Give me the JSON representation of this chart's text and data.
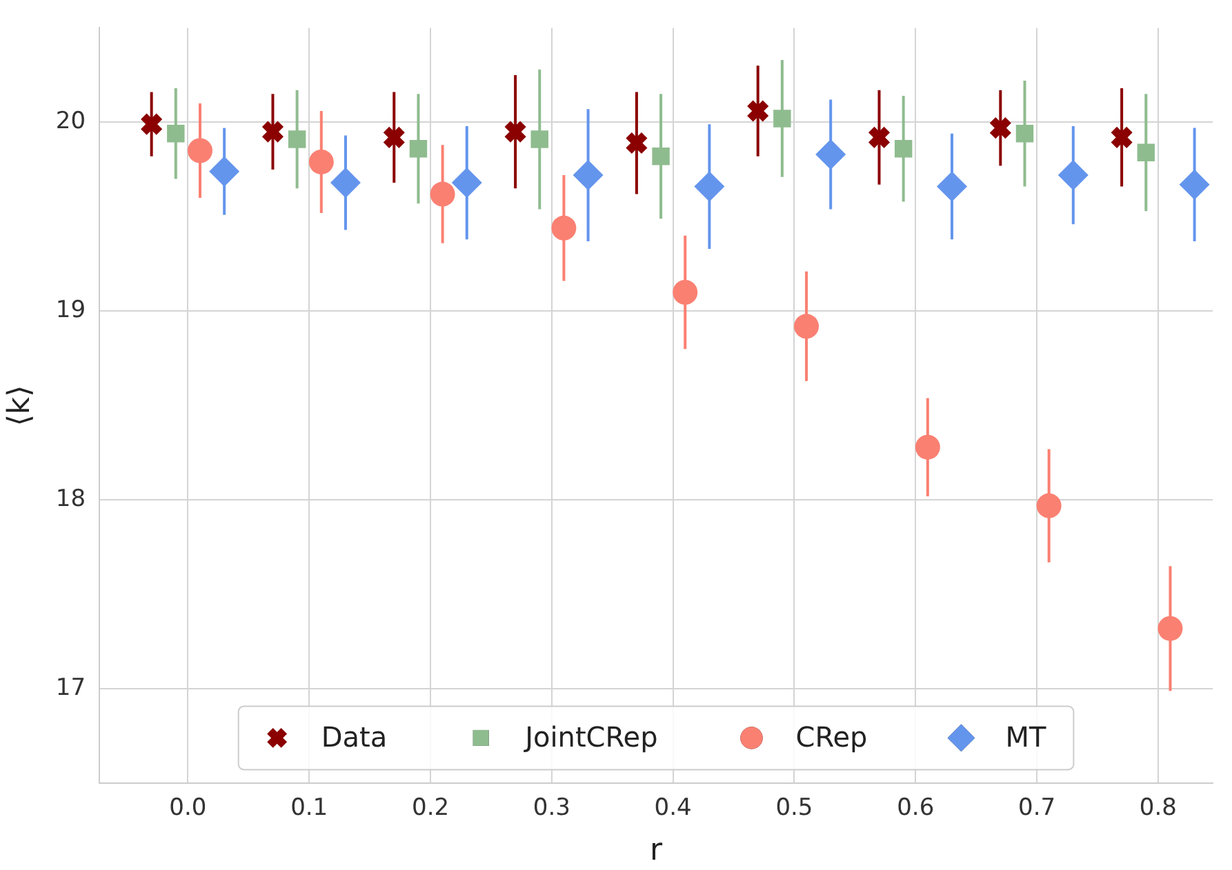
{
  "chart_data": {
    "type": "scatter",
    "xlabel": "r",
    "ylabel": "⟨k⟩",
    "xlim": [
      -0.073,
      0.845
    ],
    "ylim": [
      16.5,
      20.5
    ],
    "xticks": [
      {
        "value": 0,
        "label": "0.0"
      },
      0.1,
      0.2,
      0.3,
      0.4,
      0.5,
      0.6,
      0.7,
      0.8
    ],
    "yticks": [
      17,
      18,
      19,
      20
    ],
    "grid": true,
    "legend": "bottom",
    "series": [
      {
        "name": "Data",
        "color": "#8b0000",
        "marker": "cross",
        "x": [
          -0.03,
          0.07,
          0.17,
          0.27,
          0.37,
          0.47,
          0.57,
          0.67,
          0.77
        ],
        "values": [
          19.99,
          19.95,
          19.92,
          19.95,
          19.89,
          20.06,
          19.92,
          19.97,
          19.92
        ],
        "errors": [
          0.17,
          0.2,
          0.24,
          0.3,
          0.27,
          0.24,
          0.25,
          0.2,
          0.26
        ]
      },
      {
        "name": "JointCRep",
        "color": "#8fbc8f",
        "marker": "square",
        "x": [
          -0.01,
          0.09,
          0.19,
          0.29,
          0.39,
          0.49,
          0.59,
          0.69,
          0.79
        ],
        "values": [
          19.94,
          19.91,
          19.86,
          19.91,
          19.82,
          20.02,
          19.86,
          19.94,
          19.84
        ],
        "errors": [
          0.24,
          0.26,
          0.29,
          0.37,
          0.33,
          0.31,
          0.28,
          0.28,
          0.31
        ]
      },
      {
        "name": "CRep",
        "color": "#fa8072",
        "marker": "circle",
        "x": [
          0.01,
          0.11,
          0.21,
          0.31,
          0.41,
          0.51,
          0.61,
          0.71,
          0.81
        ],
        "values": [
          19.85,
          19.79,
          19.62,
          19.44,
          19.1,
          18.92,
          18.28,
          17.97,
          17.32
        ],
        "errors": [
          0.25,
          0.27,
          0.26,
          0.28,
          0.3,
          0.29,
          0.26,
          0.3,
          0.33
        ]
      },
      {
        "name": "MT",
        "color": "#6495ed",
        "marker": "diamond",
        "x": [
          0.03,
          0.13,
          0.23,
          0.33,
          0.43,
          0.53,
          0.63,
          0.73,
          0.83
        ],
        "values": [
          19.74,
          19.68,
          19.68,
          19.72,
          19.66,
          19.83,
          19.66,
          19.72,
          19.67
        ],
        "errors": [
          0.23,
          0.25,
          0.3,
          0.35,
          0.33,
          0.29,
          0.28,
          0.26,
          0.3
        ]
      }
    ]
  }
}
